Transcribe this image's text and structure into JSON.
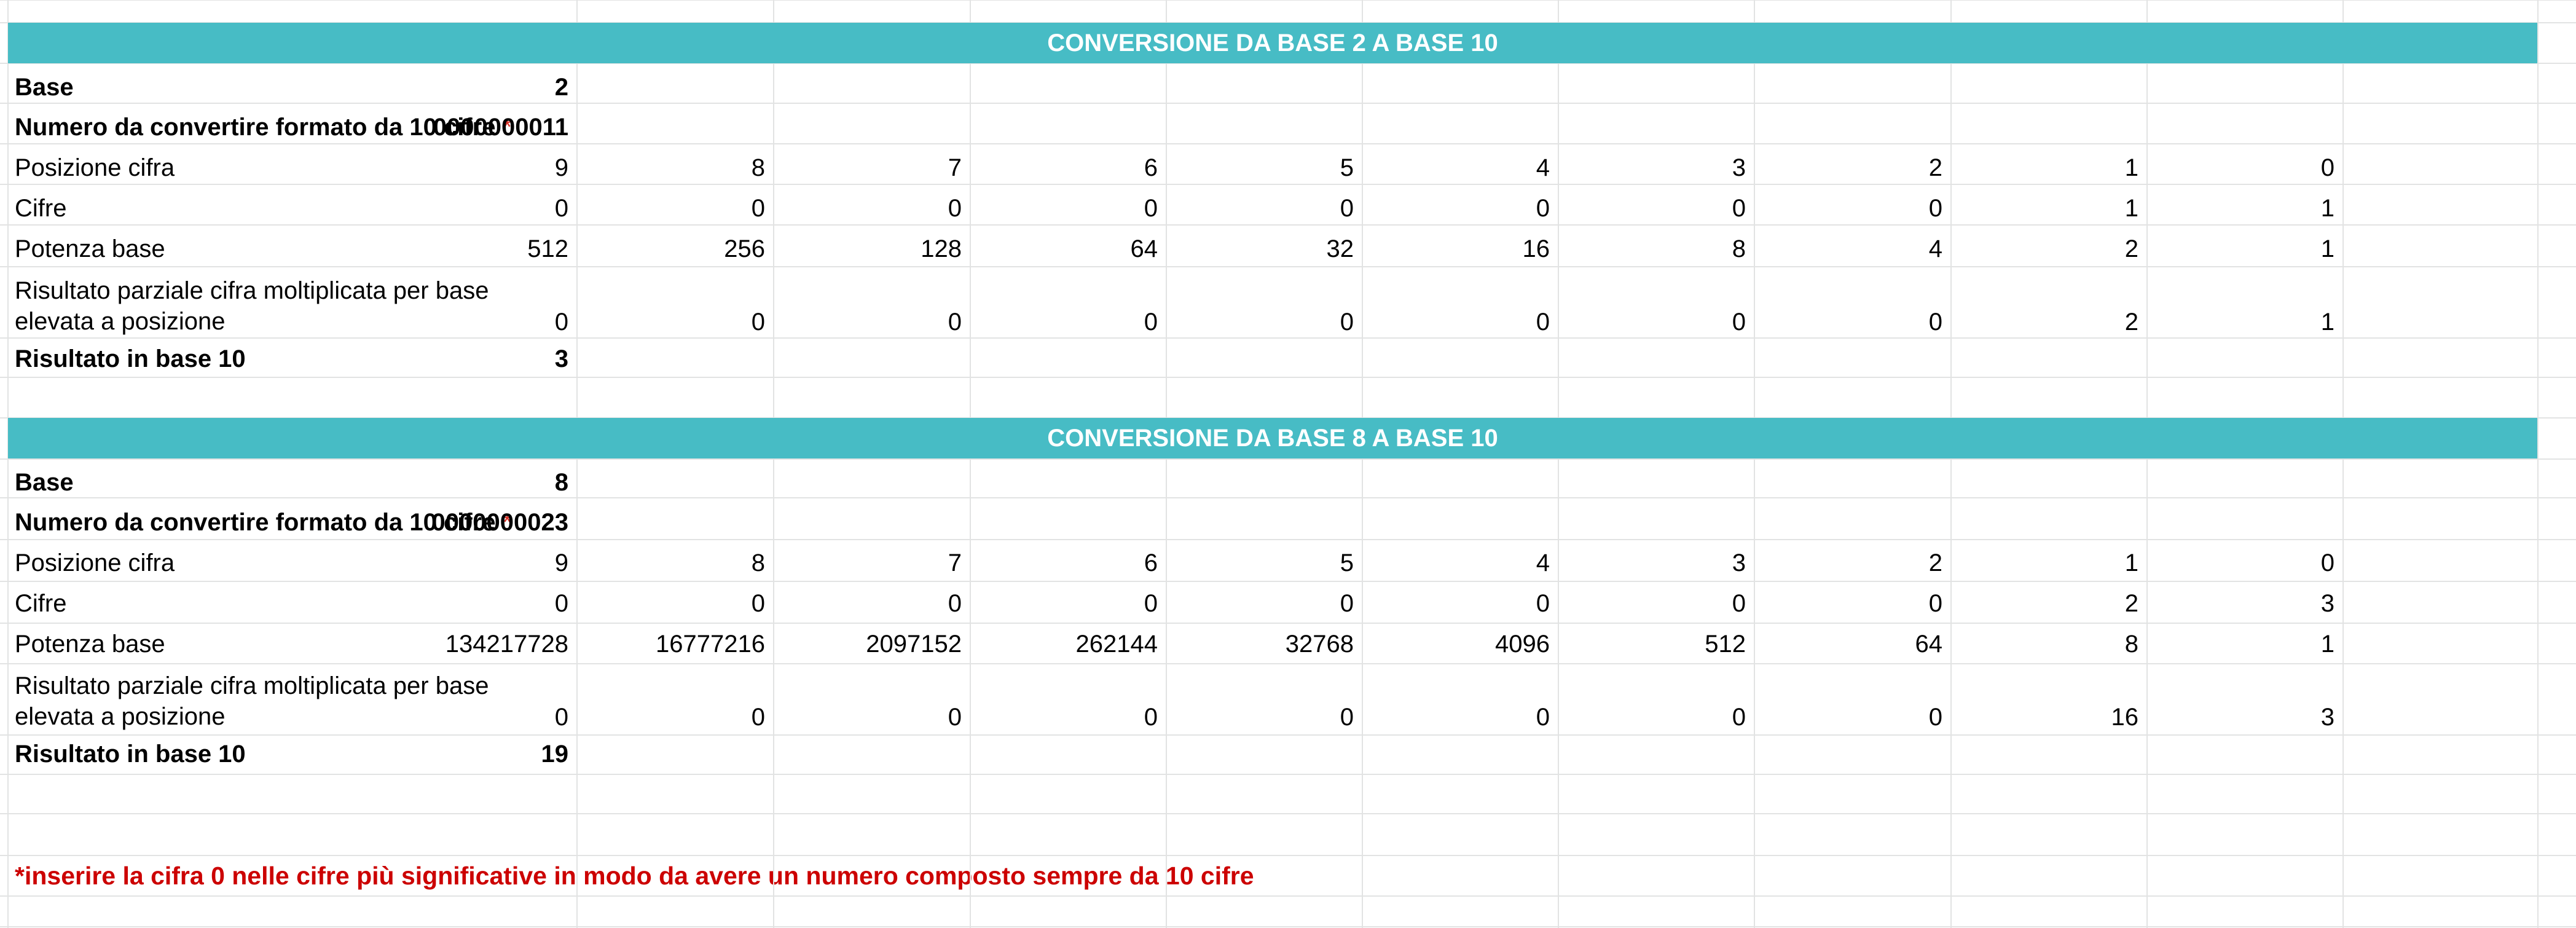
{
  "sections": [
    {
      "title": "CONVERSIONE DA BASE 2 A BASE 10",
      "base_label": "Base",
      "base_value": "2",
      "number_label": "Numero da convertire formato da 10 cifre",
      "number_mark": "*",
      "number_value": "0000000011",
      "position_label": "Posizione cifra",
      "positions": [
        "9",
        "8",
        "7",
        "6",
        "5",
        "4",
        "3",
        "2",
        "1",
        "0"
      ],
      "digits_label": "Cifre",
      "digits": [
        "0",
        "0",
        "0",
        "0",
        "0",
        "0",
        "0",
        "0",
        "1",
        "1"
      ],
      "power_label": "Potenza base",
      "powers": [
        "512",
        "256",
        "128",
        "64",
        "32",
        "16",
        "8",
        "4",
        "2",
        "1"
      ],
      "partial_label_line1": "Risultato parziale cifra moltiplicata per base",
      "partial_label_line2": "elevata a posizione",
      "partials": [
        "0",
        "0",
        "0",
        "0",
        "0",
        "0",
        "0",
        "0",
        "2",
        "1"
      ],
      "result_label": "Risultato in base 10",
      "result_value": "3"
    },
    {
      "title": "CONVERSIONE DA BASE 8 A BASE 10",
      "base_label": "Base",
      "base_value": "8",
      "number_label": "Numero da convertire formato da 10 cifre",
      "number_mark": "*",
      "number_value": "0000000023",
      "position_label": "Posizione cifra",
      "positions": [
        "9",
        "8",
        "7",
        "6",
        "5",
        "4",
        "3",
        "2",
        "1",
        "0"
      ],
      "digits_label": "Cifre",
      "digits": [
        "0",
        "0",
        "0",
        "0",
        "0",
        "0",
        "0",
        "0",
        "2",
        "3"
      ],
      "power_label": "Potenza base",
      "powers": [
        "134217728",
        "16777216",
        "2097152",
        "262144",
        "32768",
        "4096",
        "512",
        "64",
        "8",
        "1"
      ],
      "partial_label_line1": "Risultato parziale cifra moltiplicata per base",
      "partial_label_line2": "elevata a posizione",
      "partials": [
        "0",
        "0",
        "0",
        "0",
        "0",
        "0",
        "0",
        "0",
        "16",
        "3"
      ],
      "result_label": "Risultato in base 10",
      "result_value": "19"
    }
  ],
  "footnote": "*inserire la cifra 0 nelle cifre più significative in modo da avere un numero composto sempre da 10 cifre",
  "colors": {
    "header_bg": "#47bcc5",
    "header_text": "#ffffff",
    "note_text": "#cc0000",
    "asterisk": "#d93025",
    "gridline": "#e2e3e3"
  }
}
